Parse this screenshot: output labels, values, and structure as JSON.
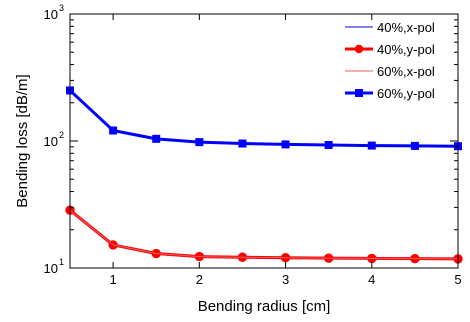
{
  "chart_data": {
    "type": "line",
    "xlabel": "Bending radius [cm]",
    "ylabel": "Bending loss [dB/m]",
    "xlim": [
      0.5,
      5
    ],
    "ylim": [
      10,
      1000
    ],
    "yscale": "log",
    "grid": false,
    "legend_position": "top-right",
    "x_ticks": [
      "1",
      "2",
      "3",
      "4",
      "5"
    ],
    "x_tick_values": [
      1,
      2,
      3,
      4,
      5
    ],
    "y_ticks": [
      {
        "value": 10,
        "base": "10",
        "exp": "1"
      },
      {
        "value": 100,
        "base": "10",
        "exp": "2"
      },
      {
        "value": 1000,
        "base": "10",
        "exp": "3"
      }
    ],
    "x": [
      0.5,
      1,
      1.5,
      2,
      2.5,
      3,
      3.5,
      4,
      4.5,
      5
    ],
    "series": [
      {
        "name": "40%,x-pol",
        "color": "#0000cc",
        "marker": "none",
        "linewidth": 1,
        "values": [
          250,
          121,
          104,
          98,
          95.5,
          94,
          93,
          92,
          91.5,
          91
        ]
      },
      {
        "name": "40%,y-pol",
        "color": "#ff0000",
        "marker": "circle",
        "linewidth": 3,
        "values": [
          28.5,
          15.2,
          13.0,
          12.3,
          12.15,
          12.05,
          11.95,
          11.9,
          11.85,
          11.8
        ]
      },
      {
        "name": "60%,x-pol",
        "color": "#e06060",
        "marker": "none",
        "linewidth": 1,
        "values": [
          28.5,
          15.2,
          13.0,
          12.3,
          12.15,
          12.05,
          11.95,
          11.9,
          11.85,
          11.8
        ]
      },
      {
        "name": "60%,y-pol",
        "color": "#0000ff",
        "marker": "square",
        "linewidth": 3,
        "values": [
          250,
          121,
          104,
          98,
          95.5,
          94,
          93,
          92,
          91.5,
          91
        ]
      }
    ]
  }
}
